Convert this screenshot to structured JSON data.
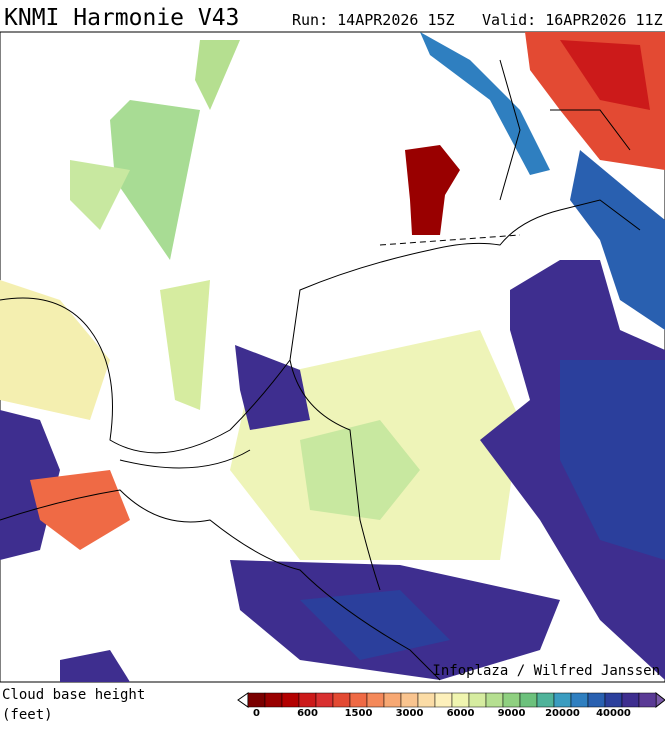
{
  "header": {
    "title": "KNMI Harmonie V43",
    "run": "Run: 14APR2026 15Z",
    "valid": "Valid: 16APR2026 11Z"
  },
  "credit": "Infoplaza / Wilfred Janssen",
  "legend": {
    "title": "Cloud base height",
    "unit": "(feet)",
    "labels": [
      "0",
      "600",
      "1500",
      "3000",
      "6000",
      "9000",
      "20000",
      "40000"
    ],
    "colors": [
      "#7a0000",
      "#990000",
      "#b30000",
      "#cc1a1a",
      "#d93030",
      "#e34a33",
      "#ef6a45",
      "#f4895a",
      "#f7a873",
      "#f9c48f",
      "#fbdca6",
      "#fdf0bb",
      "#f0f5b0",
      "#d6eca0",
      "#b5df90",
      "#8fd080",
      "#6cc17c",
      "#4fb39a",
      "#3a9cc0",
      "#2f7fc0",
      "#2960b0",
      "#2b3f9c",
      "#3e2e8f",
      "#5a3a95"
    ]
  }
}
